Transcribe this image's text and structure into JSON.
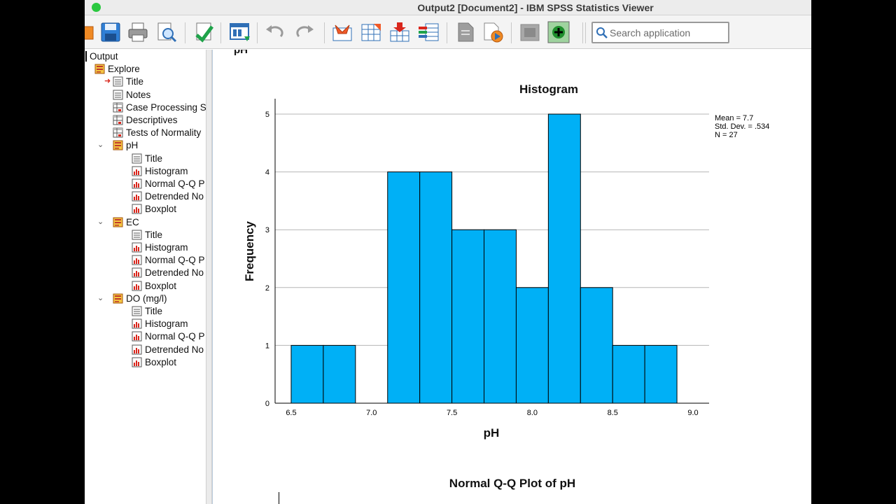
{
  "window": {
    "title": "Output2 [Document2] - IBM SPSS Statistics Viewer"
  },
  "toolbar": {
    "search_placeholder": "Search application",
    "icons": [
      "open-icon",
      "save-icon",
      "print-icon",
      "print-preview-icon",
      "export-icon",
      "dialog-recall-icon",
      "undo-icon",
      "redo-icon",
      "goto-data-icon",
      "goto-case-icon",
      "insert-variable-icon",
      "variables-icon",
      "designate-window-icon",
      "run-script-icon",
      "show-all-icon",
      "add-icon"
    ]
  },
  "outline": {
    "root": "Output",
    "explore": "Explore",
    "explore_items": [
      "Title",
      "Notes",
      "Case Processing S",
      "Descriptives",
      "Tests of Normality"
    ],
    "groups": [
      {
        "label": "pH",
        "items": [
          "Title",
          "Histogram",
          "Normal Q-Q P",
          "Detrended No",
          "Boxplot"
        ]
      },
      {
        "label": "EC",
        "items": [
          "Title",
          "Histogram",
          "Normal Q-Q P",
          "Detrended No",
          "Boxplot"
        ]
      },
      {
        "label": "DO (mg/l)",
        "items": [
          "Title",
          "Histogram",
          "Normal Q-Q P",
          "Detrended No",
          "Boxplot"
        ]
      }
    ]
  },
  "content": {
    "prev_heading_cut": "pH",
    "next_title": "Normal Q-Q Plot of pH"
  },
  "chart_data": {
    "type": "bar",
    "title": "Histogram",
    "xlabel": "pH",
    "ylabel": "Frequency",
    "bins": [
      {
        "x0": 6.5,
        "x1": 6.7,
        "value": 1
      },
      {
        "x0": 6.7,
        "x1": 6.9,
        "value": 1
      },
      {
        "x0": 6.9,
        "x1": 7.1,
        "value": 0
      },
      {
        "x0": 7.1,
        "x1": 7.3,
        "value": 4
      },
      {
        "x0": 7.3,
        "x1": 7.5,
        "value": 4
      },
      {
        "x0": 7.5,
        "x1": 7.7,
        "value": 3
      },
      {
        "x0": 7.7,
        "x1": 7.9,
        "value": 3
      },
      {
        "x0": 7.9,
        "x1": 8.1,
        "value": 2
      },
      {
        "x0": 8.1,
        "x1": 8.3,
        "value": 5
      },
      {
        "x0": 8.3,
        "x1": 8.5,
        "value": 2
      },
      {
        "x0": 8.5,
        "x1": 8.7,
        "value": 1
      },
      {
        "x0": 8.7,
        "x1": 8.9,
        "value": 1
      }
    ],
    "xlim": [
      6.5,
      9.0
    ],
    "x_ticks": [
      "6.5",
      "7.0",
      "7.5",
      "8.0",
      "8.5",
      "9.0"
    ],
    "ylim": [
      0,
      5
    ],
    "y_ticks": [
      "0",
      "1",
      "2",
      "3",
      "4",
      "5"
    ],
    "grid": true,
    "bar_color": "#00b0f6",
    "legend_position": "top-right",
    "stats": [
      "Mean = 7.7",
      "Std. Dev. = .534",
      "N = 27"
    ]
  }
}
